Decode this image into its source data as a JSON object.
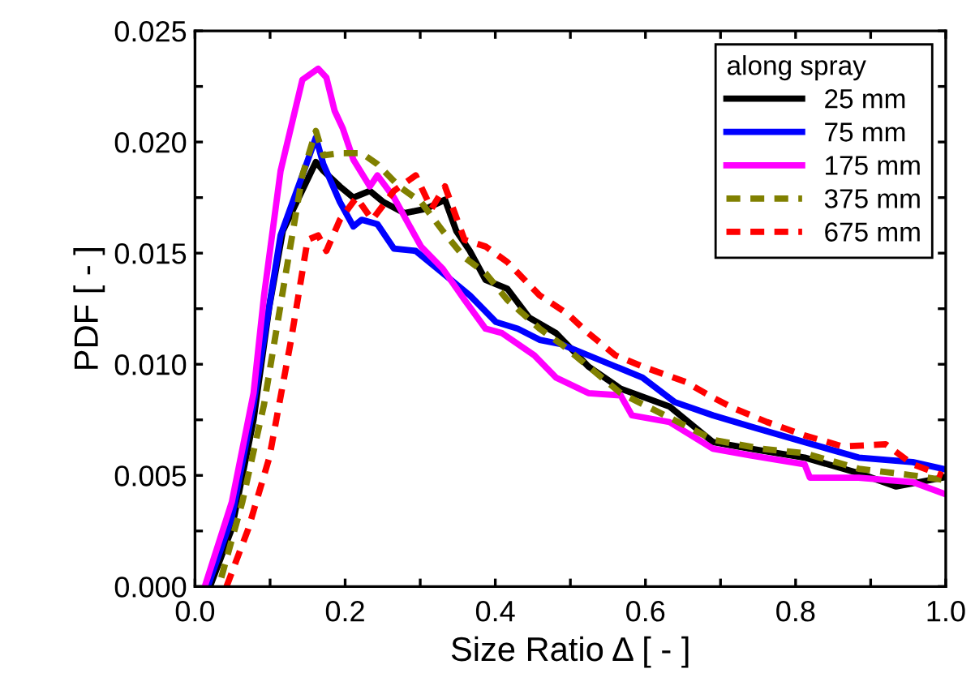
{
  "chart_data": {
    "type": "line",
    "xlabel": "Size Ratio Δ [ - ]",
    "ylabel": "PDF [ - ]",
    "legend_title": "along spray",
    "legend": "top right",
    "grid": false,
    "xlim": [
      0,
      1.0
    ],
    "ylim": [
      0,
      0.025
    ],
    "xticks": [
      {
        "value": 0,
        "label": "0.0"
      },
      {
        "value": 0.1,
        "label": null
      },
      {
        "value": 0.2,
        "label": "0.2"
      },
      {
        "value": 0.3,
        "label": null
      },
      {
        "value": 0.4,
        "label": "0.4"
      },
      {
        "value": 0.5,
        "label": null
      },
      {
        "value": 0.6,
        "label": "0.6"
      },
      {
        "value": 0.7,
        "label": null
      },
      {
        "value": 0.8,
        "label": "0.8"
      },
      {
        "value": 0.9,
        "label": null
      },
      {
        "value": 1.0,
        "label": "1.0"
      }
    ],
    "yticks": [
      {
        "value": 0,
        "label": "0.000"
      },
      {
        "value": 0.0025,
        "label": null
      },
      {
        "value": 0.005,
        "label": "0.005"
      },
      {
        "value": 0.0075,
        "label": null
      },
      {
        "value": 0.01,
        "label": "0.010"
      },
      {
        "value": 0.0125,
        "label": null
      },
      {
        "value": 0.015,
        "label": "0.015"
      },
      {
        "value": 0.0175,
        "label": null
      },
      {
        "value": 0.02,
        "label": "0.020"
      },
      {
        "value": 0.0225,
        "label": null
      },
      {
        "value": 0.025,
        "label": "0.025"
      }
    ],
    "series": [
      {
        "name": "25 mm",
        "color": "#000000",
        "line_style": "solid",
        "x": [
          0.02,
          0.049,
          0.078,
          0.099,
          0.117,
          0.161,
          0.171,
          0.193,
          0.211,
          0.233,
          0.251,
          0.279,
          0.308,
          0.333,
          0.348,
          0.366,
          0.387,
          0.416,
          0.445,
          0.481,
          0.524,
          0.567,
          0.632,
          0.69,
          0.74,
          0.812,
          0.884,
          0.934,
          0.996
        ],
        "values": [
          0,
          0.0026,
          0.0075,
          0.0126,
          0.016,
          0.0191,
          0.0187,
          0.018,
          0.0175,
          0.0178,
          0.0173,
          0.0168,
          0.017,
          0.0174,
          0.016,
          0.0151,
          0.0138,
          0.0134,
          0.0121,
          0.0114,
          0.0099,
          0.0089,
          0.0081,
          0.0065,
          0.0062,
          0.0058,
          0.0051,
          0.0045,
          0.0049
        ]
      },
      {
        "name": "75 mm",
        "color": "#0000ff",
        "line_style": "solid",
        "x": [
          0.017,
          0.049,
          0.078,
          0.114,
          0.143,
          0.161,
          0.171,
          0.193,
          0.211,
          0.222,
          0.243,
          0.265,
          0.294,
          0.33,
          0.366,
          0.401,
          0.43,
          0.459,
          0.488,
          0.524,
          0.596,
          0.639,
          0.69,
          0.74,
          0.812,
          0.884,
          0.956,
          0.996
        ],
        "values": [
          0,
          0.0031,
          0.0082,
          0.0158,
          0.0185,
          0.0202,
          0.019,
          0.0173,
          0.0162,
          0.0165,
          0.0163,
          0.0152,
          0.0151,
          0.0141,
          0.0131,
          0.0119,
          0.0116,
          0.0111,
          0.0109,
          0.0104,
          0.0094,
          0.0083,
          0.0077,
          0.0072,
          0.0065,
          0.0058,
          0.0056,
          0.0053
        ]
      },
      {
        "name": "175 mm",
        "color": "#ff00ff",
        "line_style": "solid",
        "x": [
          0.013,
          0.049,
          0.078,
          0.092,
          0.114,
          0.143,
          0.164,
          0.175,
          0.186,
          0.197,
          0.211,
          0.233,
          0.243,
          0.265,
          0.301,
          0.33,
          0.359,
          0.387,
          0.409,
          0.452,
          0.481,
          0.524,
          0.567,
          0.582,
          0.632,
          0.69,
          0.74,
          0.812,
          0.819,
          0.884,
          0.956,
          0.996
        ],
        "values": [
          0,
          0.0038,
          0.0087,
          0.0131,
          0.0187,
          0.0228,
          0.0233,
          0.0229,
          0.0214,
          0.0206,
          0.0192,
          0.018,
          0.0185,
          0.0175,
          0.0153,
          0.0143,
          0.0129,
          0.0116,
          0.0114,
          0.0104,
          0.0094,
          0.0087,
          0.0086,
          0.0077,
          0.0074,
          0.0062,
          0.0059,
          0.0055,
          0.0049,
          0.0049,
          0.0047,
          0.0042
        ]
      },
      {
        "name": "375 mm",
        "color": "#808000",
        "line_style": "dashed",
        "x": [
          0.035,
          0.063,
          0.092,
          0.121,
          0.143,
          0.161,
          0.171,
          0.193,
          0.222,
          0.243,
          0.272,
          0.301,
          0.33,
          0.359,
          0.387,
          0.416,
          0.459,
          0.488,
          0.524,
          0.567,
          0.632,
          0.69,
          0.755,
          0.812,
          0.884,
          0.956,
          0.996
        ],
        "values": [
          0.0004,
          0.0038,
          0.0082,
          0.0141,
          0.0185,
          0.0205,
          0.0194,
          0.0195,
          0.0195,
          0.019,
          0.018,
          0.0173,
          0.016,
          0.0148,
          0.0141,
          0.0129,
          0.0116,
          0.0109,
          0.0099,
          0.0087,
          0.0076,
          0.0066,
          0.0062,
          0.006,
          0.0053,
          0.005,
          0.0048
        ]
      },
      {
        "name": "675 mm",
        "color": "#ff0000",
        "line_style": "dashed",
        "x": [
          0.042,
          0.071,
          0.099,
          0.128,
          0.15,
          0.164,
          0.175,
          0.193,
          0.215,
          0.236,
          0.265,
          0.294,
          0.315,
          0.333,
          0.359,
          0.387,
          0.416,
          0.459,
          0.495,
          0.524,
          0.56,
          0.596,
          0.654,
          0.69,
          0.719,
          0.762,
          0.812,
          0.863,
          0.92,
          0.956,
          0.996
        ],
        "values": [
          0,
          0.0026,
          0.0058,
          0.0111,
          0.0156,
          0.0158,
          0.0151,
          0.0165,
          0.0175,
          0.0165,
          0.0178,
          0.0185,
          0.017,
          0.018,
          0.0156,
          0.0153,
          0.0146,
          0.0131,
          0.0123,
          0.0114,
          0.0104,
          0.0099,
          0.0092,
          0.0085,
          0.008,
          0.0074,
          0.0068,
          0.0063,
          0.0064,
          0.0055,
          0.005
        ]
      }
    ]
  }
}
